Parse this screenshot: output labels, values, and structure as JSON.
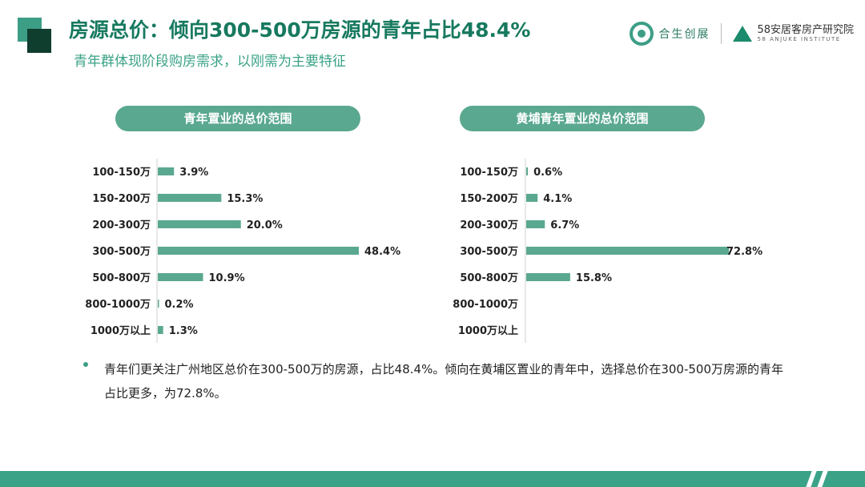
{
  "header": {
    "title": "房源总价：倾向300-500万房源的青年占比48.4%",
    "subtitle": "青年群体现阶段购房需求，以刚需为主要特征"
  },
  "logos": {
    "logo1_text": "合生创展",
    "logo2_text": "58安居客房产研究院",
    "logo2_sub": "58 ANJUKE INSTITUTE"
  },
  "colors": {
    "accent": "#5aa890",
    "title": "#17795f",
    "bar": "#5aa890"
  },
  "chart_data": [
    {
      "type": "bar",
      "orientation": "horizontal",
      "title": "青年置业的总价范围",
      "categories": [
        "100-150万",
        "150-200万",
        "200-300万",
        "300-500万",
        "500-800万",
        "800-1000万",
        "1000万以上"
      ],
      "values": [
        3.9,
        15.3,
        20.0,
        48.4,
        10.9,
        0.2,
        1.3
      ],
      "value_labels": [
        "3.9%",
        "15.3%",
        "20.0%",
        "48.4%",
        "10.9%",
        "0.2%",
        "1.3%"
      ],
      "xlim": [
        0,
        48.4
      ]
    },
    {
      "type": "bar",
      "orientation": "horizontal",
      "title": "黄埔青年置业的总价范围",
      "categories": [
        "100-150万",
        "150-200万",
        "200-300万",
        "300-500万",
        "500-800万",
        "800-1000万",
        "1000万以上"
      ],
      "values": [
        0.6,
        4.1,
        6.7,
        72.8,
        15.8,
        0,
        0
      ],
      "value_labels": [
        "0.6%",
        "4.1%",
        "6.7%",
        "72.8%",
        "15.8%",
        "",
        ""
      ],
      "xlim": [
        0,
        72.8
      ]
    }
  ],
  "note": "青年们更关注广州地区总价在300-500万的房源，占比48.4%。倾向在黄埔区置业的青年中，选择总价在300-500万房源的青年占比更多，为72.8%。"
}
